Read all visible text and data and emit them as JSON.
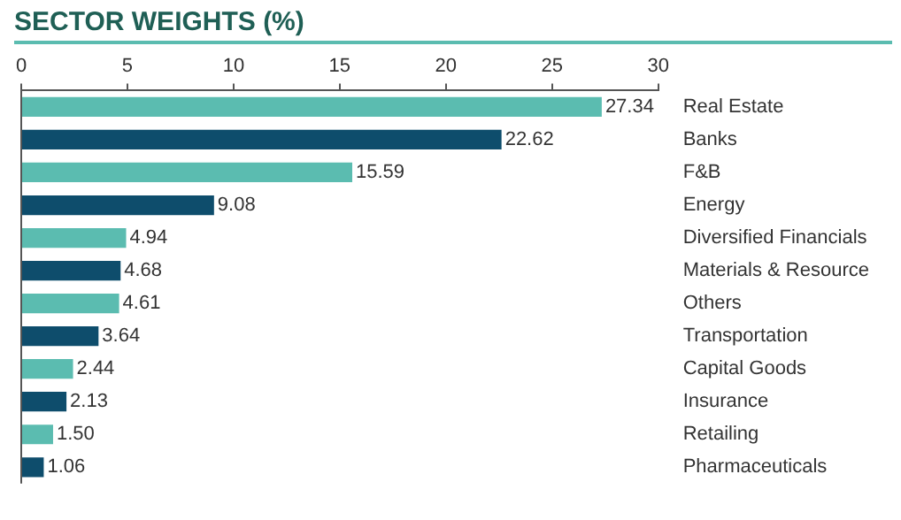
{
  "chart_data": {
    "type": "bar",
    "orientation": "horizontal",
    "title": "SECTOR WEIGHTS (%)",
    "categories": [
      "Real Estate",
      "Banks",
      "F&B",
      "Energy",
      "Diversified Financials",
      "Materials & Resource",
      "Others",
      "Transportation",
      "Capital Goods",
      "Insurance",
      "Retailing",
      "Pharmaceuticals"
    ],
    "values": [
      27.34,
      22.62,
      15.59,
      9.08,
      4.94,
      4.68,
      4.61,
      3.64,
      2.44,
      2.13,
      1.5,
      1.06
    ],
    "value_labels": [
      "27.34",
      "22.62",
      "15.59",
      "9.08",
      "4.94",
      "4.68",
      "4.61",
      "3.64",
      "2.44",
      "2.13",
      "1.50",
      "1.06"
    ],
    "colors": [
      "#5bbcb0",
      "#0e4d6c",
      "#5bbcb0",
      "#0e4d6c",
      "#5bbcb0",
      "#0e4d6c",
      "#5bbcb0",
      "#0e4d6c",
      "#5bbcb0",
      "#0e4d6c",
      "#5bbcb0",
      "#0e4d6c"
    ],
    "xlim": [
      0,
      30
    ],
    "xticks": [
      0,
      5,
      10,
      15,
      20,
      25,
      30
    ],
    "grid": false,
    "legend": false
  }
}
